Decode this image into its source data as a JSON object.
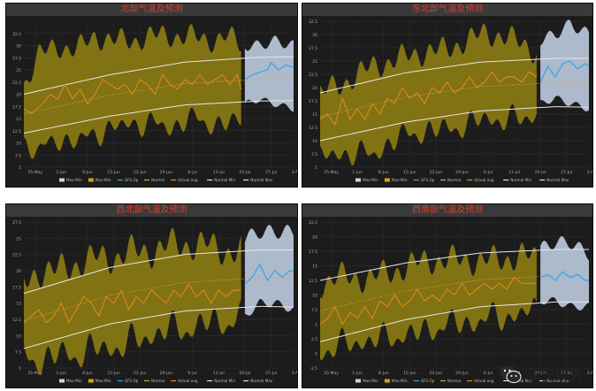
{
  "chart_data": [
    {
      "type": "area",
      "title": "北部气温及预测",
      "ylim": [
        5,
        35
      ],
      "yticks": [
        "5",
        "7.5",
        "10",
        "12.5",
        "15",
        "17.5",
        "20",
        "22.5",
        "25",
        "27.5",
        "30",
        "32.5"
      ],
      "xticks": [
        "25-May",
        "1-Jun",
        "8-Jun",
        "15-Jun",
        "22-Jun",
        "29-Jun",
        "6-Jul",
        "13-Jul",
        "20-Jul",
        "27-Jul",
        "3-Aug"
      ],
      "x_range": [
        -3,
        69
      ],
      "legend": [
        "Max-Min",
        "Max-Min",
        "GFS Op",
        "Normal",
        "Actual avg",
        "Normal Min",
        "Normal Max"
      ],
      "legend_position": "bottom",
      "normal_min": [
        [
          -3,
          12.0
        ],
        [
          20,
          15.5
        ],
        [
          40,
          17.8
        ],
        [
          60,
          18.6
        ],
        [
          69,
          18.7
        ]
      ],
      "normal_max": [
        [
          -3,
          20.0
        ],
        [
          20,
          24.0
        ],
        [
          40,
          26.6
        ],
        [
          60,
          27.6
        ],
        [
          69,
          27.7
        ]
      ],
      "normal_mid": [
        [
          -3,
          16.0
        ],
        [
          20,
          19.8
        ],
        [
          40,
          22.2
        ],
        [
          60,
          23.1
        ],
        [
          69,
          23.2
        ]
      ],
      "actual_range": [
        [
          -3,
          10,
          22
        ],
        [
          1,
          8,
          28
        ],
        [
          6,
          11,
          30
        ],
        [
          11,
          10,
          29
        ],
        [
          16,
          12,
          32
        ],
        [
          21,
          13,
          31
        ],
        [
          26,
          14,
          31
        ],
        [
          31,
          14,
          32
        ],
        [
          36,
          13,
          32
        ],
        [
          41,
          15,
          32
        ],
        [
          46,
          14,
          31
        ],
        [
          51,
          14,
          32
        ],
        [
          55,
          14,
          30
        ]
      ],
      "actual_avg": [
        [
          -3,
          17
        ],
        [
          -1,
          16
        ],
        [
          2,
          18
        ],
        [
          4,
          20
        ],
        [
          6,
          19
        ],
        [
          8,
          22
        ],
        [
          10,
          19
        ],
        [
          12,
          21
        ],
        [
          14,
          18
        ],
        [
          16,
          20
        ],
        [
          18,
          23
        ],
        [
          20,
          22
        ],
        [
          22,
          21
        ],
        [
          24,
          22
        ],
        [
          26,
          20
        ],
        [
          28,
          23
        ],
        [
          30,
          22
        ],
        [
          32,
          20
        ],
        [
          34,
          24
        ],
        [
          36,
          22
        ],
        [
          38,
          21
        ],
        [
          40,
          23
        ],
        [
          42,
          22
        ],
        [
          44,
          24
        ],
        [
          46,
          22
        ],
        [
          48,
          23
        ],
        [
          50,
          24
        ],
        [
          52,
          22
        ],
        [
          54,
          24
        ],
        [
          55,
          21
        ]
      ],
      "forecast_range": [
        [
          56,
          18,
          30
        ],
        [
          60,
          19,
          30
        ],
        [
          64,
          18,
          31
        ],
        [
          69,
          17,
          30
        ]
      ],
      "gfs_op": [
        [
          56,
          23
        ],
        [
          58,
          24
        ],
        [
          60,
          24.5
        ],
        [
          62,
          25
        ],
        [
          63,
          26.5
        ],
        [
          65,
          25
        ],
        [
          67,
          26
        ],
        [
          69,
          25.5
        ]
      ]
    },
    {
      "type": "area",
      "title": "东北部气温及预测",
      "ylim": [
        5,
        32.5
      ],
      "yticks": [
        "5",
        "7.5",
        "10",
        "12.5",
        "15",
        "17.5",
        "20",
        "22.5",
        "25",
        "27.5",
        "30",
        "32.5"
      ],
      "xticks": [
        "25-May",
        "1-Jun",
        "8-Jun",
        "15-Jun",
        "22-Jun",
        "29-Jun",
        "6-Jul",
        "13-Jul",
        "20-Jul",
        "27-Jul",
        "3-Aug"
      ],
      "x_range": [
        -3,
        69
      ],
      "legend": [
        "Max-Min",
        "Max-Min",
        "GFS Op",
        "Normal",
        "Actual avg",
        "Normal Min",
        "Normal Max"
      ],
      "legend_position": "bottom",
      "normal_min": [
        [
          -3,
          10.0
        ],
        [
          20,
          13.5
        ],
        [
          40,
          15.6
        ],
        [
          60,
          16.4
        ],
        [
          69,
          16.3
        ]
      ],
      "normal_max": [
        [
          -3,
          19.0
        ],
        [
          20,
          22.8
        ],
        [
          40,
          24.8
        ],
        [
          60,
          25.5
        ],
        [
          69,
          25.5
        ]
      ],
      "normal_mid": [
        [
          -3,
          14.5
        ],
        [
          20,
          18.2
        ],
        [
          40,
          20.2
        ],
        [
          60,
          20.9
        ],
        [
          69,
          20.9
        ]
      ],
      "actual_range": [
        [
          -3,
          7,
          19
        ],
        [
          1,
          7,
          20
        ],
        [
          6,
          8,
          22
        ],
        [
          11,
          7,
          24
        ],
        [
          16,
          10,
          25
        ],
        [
          21,
          11,
          26
        ],
        [
          26,
          12,
          27
        ],
        [
          31,
          12,
          27
        ],
        [
          36,
          13,
          29
        ],
        [
          41,
          14,
          30
        ],
        [
          46,
          14,
          30
        ],
        [
          51,
          14,
          28
        ],
        [
          55,
          15,
          27
        ]
      ],
      "actual_avg": [
        [
          -3,
          14
        ],
        [
          -1,
          15
        ],
        [
          1,
          13
        ],
        [
          3,
          18
        ],
        [
          5,
          14
        ],
        [
          7,
          16
        ],
        [
          9,
          14
        ],
        [
          11,
          17
        ],
        [
          13,
          15
        ],
        [
          15,
          18
        ],
        [
          17,
          17
        ],
        [
          19,
          20
        ],
        [
          21,
          18
        ],
        [
          23,
          19
        ],
        [
          25,
          17
        ],
        [
          27,
          20
        ],
        [
          29,
          19
        ],
        [
          31,
          21
        ],
        [
          33,
          19
        ],
        [
          35,
          20
        ],
        [
          37,
          22
        ],
        [
          39,
          20
        ],
        [
          41,
          21
        ],
        [
          43,
          23
        ],
        [
          45,
          21
        ],
        [
          47,
          22
        ],
        [
          49,
          22
        ],
        [
          51,
          21
        ],
        [
          53,
          23
        ],
        [
          55,
          22
        ]
      ],
      "forecast_range": [
        [
          56,
          17,
          29
        ],
        [
          60,
          18,
          30
        ],
        [
          64,
          17,
          32
        ],
        [
          69,
          16,
          30
        ]
      ],
      "gfs_op": [
        [
          56,
          21
        ],
        [
          58,
          24
        ],
        [
          60,
          22
        ],
        [
          62,
          24.5
        ],
        [
          64,
          25
        ],
        [
          66,
          23.5
        ],
        [
          68,
          24.5
        ],
        [
          69,
          24
        ]
      ]
    },
    {
      "type": "area",
      "title": "西北部气温及预测",
      "ylim": [
        5,
        27.5
      ],
      "yticks": [
        "5",
        "7.5",
        "10",
        "12.5",
        "15",
        "17.5",
        "20",
        "22.5",
        "25",
        "27.5"
      ],
      "xticks": [
        "25-May",
        "1-Jun",
        "8-Jun",
        "15-Jun",
        "22-Jun",
        "29-Jun",
        "6-Jul",
        "13-Jul",
        "20-Jul",
        "27-Jul",
        "3-Aug"
      ],
      "x_range": [
        -3,
        69
      ],
      "legend": [
        "Max-Min",
        "Max-Min",
        "GFS Op",
        "Normal",
        "Actual avg",
        "Normal Min",
        "Normal Max"
      ],
      "legend_position": "bottom",
      "normal_min": [
        [
          -3,
          8.0
        ],
        [
          20,
          11.8
        ],
        [
          40,
          13.8
        ],
        [
          60,
          14.5
        ],
        [
          69,
          14.4
        ]
      ],
      "normal_max": [
        [
          -3,
          16.5
        ],
        [
          20,
          20.5
        ],
        [
          40,
          22.5
        ],
        [
          60,
          23.2
        ],
        [
          69,
          23.2
        ]
      ],
      "normal_mid": [
        [
          -3,
          12.3
        ],
        [
          20,
          16.2
        ],
        [
          40,
          18.2
        ],
        [
          60,
          18.9
        ],
        [
          69,
          18.8
        ]
      ],
      "actual_range": [
        [
          -3,
          7,
          18
        ],
        [
          1,
          6,
          20
        ],
        [
          6,
          7,
          20
        ],
        [
          11,
          7,
          21
        ],
        [
          16,
          8,
          22
        ],
        [
          21,
          8,
          22
        ],
        [
          26,
          9,
          23
        ],
        [
          31,
          10,
          23
        ],
        [
          36,
          11,
          24
        ],
        [
          41,
          11,
          24
        ],
        [
          46,
          12,
          24
        ],
        [
          51,
          12,
          23
        ],
        [
          55,
          13,
          23
        ]
      ],
      "actual_avg": [
        [
          -3,
          12
        ],
        [
          -1,
          13
        ],
        [
          1,
          14
        ],
        [
          3,
          12
        ],
        [
          5,
          13
        ],
        [
          7,
          15
        ],
        [
          9,
          12
        ],
        [
          11,
          14
        ],
        [
          13,
          16
        ],
        [
          15,
          15
        ],
        [
          17,
          13
        ],
        [
          19,
          16
        ],
        [
          21,
          15
        ],
        [
          23,
          17
        ],
        [
          25,
          14
        ],
        [
          27,
          16
        ],
        [
          29,
          15
        ],
        [
          31,
          17
        ],
        [
          33,
          16
        ],
        [
          35,
          15
        ],
        [
          37,
          17
        ],
        [
          39,
          16
        ],
        [
          41,
          18
        ],
        [
          43,
          16
        ],
        [
          45,
          17
        ],
        [
          47,
          15
        ],
        [
          49,
          17
        ],
        [
          51,
          16
        ],
        [
          53,
          17
        ],
        [
          55,
          17
        ]
      ],
      "forecast_range": [
        [
          56,
          13,
          25
        ],
        [
          60,
          15,
          26
        ],
        [
          64,
          15,
          26
        ],
        [
          69,
          14,
          26
        ]
      ],
      "gfs_op": [
        [
          56,
          18
        ],
        [
          58,
          19
        ],
        [
          60,
          21
        ],
        [
          62,
          18.5
        ],
        [
          64,
          20
        ],
        [
          66,
          19
        ],
        [
          68,
          20
        ],
        [
          69,
          20
        ]
      ]
    },
    {
      "type": "area",
      "title": "西南部气温及预测",
      "ylim": [
        -2.5,
        22.5
      ],
      "yticks": [
        "-2.5",
        "0",
        "2.5",
        "5",
        "7.5",
        "10",
        "12.5",
        "15",
        "17.5",
        "20",
        "22.5"
      ],
      "xticks": [
        "25-May",
        "1-Jun",
        "8-Jun",
        "15-Jun",
        "22-Jun",
        "29-Jun",
        "6-Jul",
        "13-Jul",
        "20-Jul",
        "27-Jul",
        "3-Aug"
      ],
      "x_range": [
        -3,
        69
      ],
      "legend": [
        "Max-Min",
        "Max-Min",
        "GFS Op",
        "Normal",
        "Actual avg",
        "Normal Min",
        "Normal Max"
      ],
      "legend_position": "bottom",
      "normal_min": [
        [
          -3,
          2.0
        ],
        [
          20,
          5.8
        ],
        [
          40,
          8.0
        ],
        [
          60,
          8.8
        ],
        [
          69,
          8.8
        ]
      ],
      "normal_max": [
        [
          -3,
          12.5
        ],
        [
          20,
          15.5
        ],
        [
          40,
          17.2
        ],
        [
          60,
          17.8
        ],
        [
          69,
          17.8
        ]
      ],
      "normal_mid": [
        [
          -3,
          7.3
        ],
        [
          20,
          10.7
        ],
        [
          40,
          12.6
        ],
        [
          60,
          13.3
        ],
        [
          69,
          13.3
        ]
      ],
      "actual_range": [
        [
          -3,
          0,
          12
        ],
        [
          1,
          1,
          13
        ],
        [
          6,
          2,
          13
        ],
        [
          11,
          2,
          13
        ],
        [
          16,
          3,
          14
        ],
        [
          21,
          3,
          15
        ],
        [
          26,
          4,
          16
        ],
        [
          31,
          5,
          16
        ],
        [
          36,
          5,
          16
        ],
        [
          41,
          6,
          16
        ],
        [
          46,
          6,
          16
        ],
        [
          51,
          7,
          17
        ],
        [
          55,
          7,
          16
        ]
      ],
      "actual_avg": [
        [
          -3,
          5
        ],
        [
          -1,
          6
        ],
        [
          1,
          8
        ],
        [
          3,
          5
        ],
        [
          5,
          7
        ],
        [
          7,
          6
        ],
        [
          9,
          8
        ],
        [
          11,
          6
        ],
        [
          13,
          9
        ],
        [
          15,
          8
        ],
        [
          17,
          10
        ],
        [
          19,
          8
        ],
        [
          21,
          9
        ],
        [
          23,
          11
        ],
        [
          25,
          9
        ],
        [
          27,
          10
        ],
        [
          29,
          9
        ],
        [
          31,
          11
        ],
        [
          33,
          10
        ],
        [
          35,
          12
        ],
        [
          37,
          10
        ],
        [
          39,
          11
        ],
        [
          41,
          12
        ],
        [
          43,
          11
        ],
        [
          45,
          12
        ],
        [
          47,
          11
        ],
        [
          49,
          13
        ],
        [
          51,
          12
        ],
        [
          53,
          12
        ],
        [
          55,
          12
        ]
      ],
      "forecast_range": [
        [
          56,
          9,
          18
        ],
        [
          60,
          9,
          19
        ],
        [
          64,
          8,
          19
        ],
        [
          69,
          8,
          17
        ]
      ],
      "gfs_op": [
        [
          56,
          13
        ],
        [
          58,
          13.5
        ],
        [
          60,
          12.5
        ],
        [
          62,
          14
        ],
        [
          64,
          13
        ],
        [
          66,
          13.5
        ],
        [
          68,
          12.5
        ],
        [
          69,
          12.5
        ]
      ]
    }
  ],
  "watermark": {
    "text": "永安研究"
  }
}
